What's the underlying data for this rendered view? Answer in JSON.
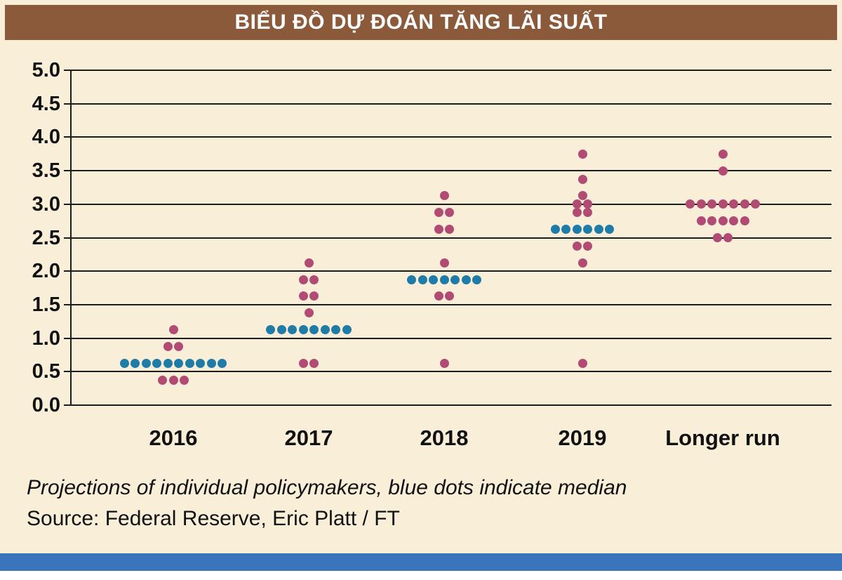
{
  "banner": {
    "title": "BIỂU ĐỒ DỰ ĐOÁN TĂNG LÃI SUẤT"
  },
  "caption": "Projections of individual policymakers, blue dots indicate median",
  "source": "Source: Federal Reserve, Eric Platt / FT",
  "colors": {
    "banner_bg": "#8b5a3b",
    "background": "#f9eed8",
    "pink_dot": "#b14b73",
    "blue_dot": "#1f7ca8",
    "bottom_bar": "#3a75bc",
    "grid": "#1c1c1c"
  },
  "chart_data": {
    "type": "scatter",
    "subtype": "fed-dot-plot",
    "title": "BIỂU ĐỒ DỰ ĐOÁN TĂNG LÃI SUẤT",
    "xlabel": "",
    "ylabel": "",
    "ylim": [
      0.0,
      5.0
    ],
    "y_tick_step": 0.5,
    "grid": true,
    "y_ticks": [
      "5.0",
      "4.5",
      "4.0",
      "3.5",
      "3.0",
      "2.5",
      "2.0",
      "1.5",
      "1.0",
      "0.5",
      "0.0"
    ],
    "categories": [
      "2016",
      "2017",
      "2018",
      "2019",
      "Longer run"
    ],
    "legend_note": "blue dots indicate median",
    "columns": [
      {
        "label": "2016",
        "median": {
          "value": 0.625,
          "count": 10
        },
        "dots": [
          {
            "value": 1.125,
            "count": 1
          },
          {
            "value": 0.875,
            "count": 2
          },
          {
            "value": 0.375,
            "count": 3
          }
        ]
      },
      {
        "label": "2017",
        "median": {
          "value": 1.125,
          "count": 8
        },
        "dots": [
          {
            "value": 2.125,
            "count": 1
          },
          {
            "value": 1.875,
            "count": 2
          },
          {
            "value": 1.625,
            "count": 2
          },
          {
            "value": 1.375,
            "count": 1
          },
          {
            "value": 0.625,
            "count": 2
          }
        ]
      },
      {
        "label": "2018",
        "median": {
          "value": 1.875,
          "count": 7
        },
        "dots": [
          {
            "value": 3.125,
            "count": 1
          },
          {
            "value": 2.875,
            "count": 2
          },
          {
            "value": 2.625,
            "count": 2
          },
          {
            "value": 2.125,
            "count": 1
          },
          {
            "value": 1.625,
            "count": 2
          },
          {
            "value": 0.625,
            "count": 1
          }
        ]
      },
      {
        "label": "2019",
        "median": {
          "value": 2.625,
          "count": 6
        },
        "dots": [
          {
            "value": 3.75,
            "count": 1
          },
          {
            "value": 3.375,
            "count": 1
          },
          {
            "value": 3.125,
            "count": 1
          },
          {
            "value": 3.0,
            "count": 2
          },
          {
            "value": 2.875,
            "count": 2
          },
          {
            "value": 2.375,
            "count": 2
          },
          {
            "value": 2.125,
            "count": 1
          },
          {
            "value": 0.625,
            "count": 1
          }
        ]
      },
      {
        "label": "Longer run",
        "median": null,
        "dots": [
          {
            "value": 3.75,
            "count": 1
          },
          {
            "value": 3.5,
            "count": 1
          },
          {
            "value": 3.0,
            "count": 7
          },
          {
            "value": 2.75,
            "count": 5
          },
          {
            "value": 2.5,
            "count": 2
          }
        ]
      }
    ]
  }
}
